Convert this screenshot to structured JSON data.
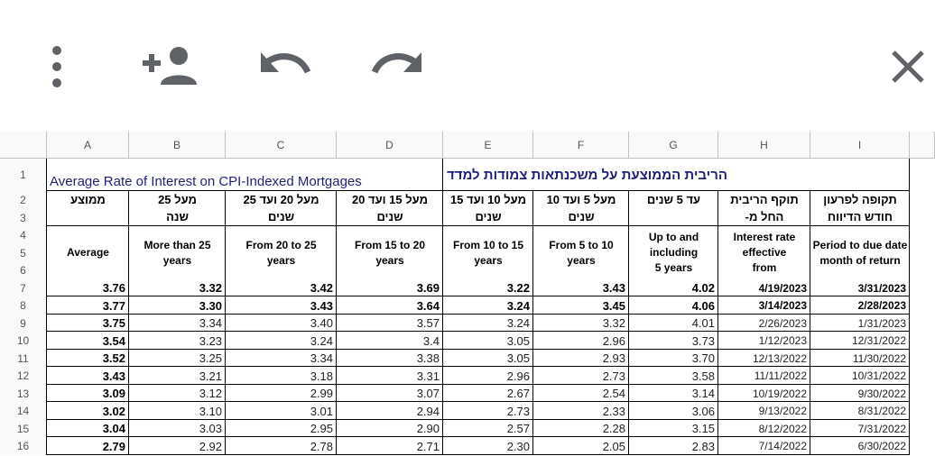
{
  "toolbar": {
    "icons": [
      "more-vert-icon",
      "add-person-icon",
      "undo-icon",
      "redo-icon",
      "close-icon"
    ]
  },
  "sheet": {
    "columns": [
      "A",
      "B",
      "C",
      "D",
      "E",
      "F",
      "G",
      "H",
      "I"
    ],
    "rows": [
      "1",
      "2",
      "3",
      "4",
      "5",
      "6",
      "7",
      "8",
      "9",
      "10",
      "11",
      "12",
      "13",
      "14",
      "15",
      "16"
    ],
    "title_en": "Average Rate of Interest on CPI-Indexed Mortgages",
    "title_he": "הריבית הממוצעת על משכנתאות צמודות למדד",
    "headers": [
      {
        "he1": "ממוצע",
        "he2": "",
        "en1": "Average",
        "en2": "",
        "en3": ""
      },
      {
        "he1": "מעל 25",
        "he2": "שנה",
        "en1": "More than 25",
        "en2": "years",
        "en3": ""
      },
      {
        "he1": "מעל 20 ועד 25",
        "he2": "שנים",
        "en1": "From 20 to 25",
        "en2": "years",
        "en3": ""
      },
      {
        "he1": "מעל 15 ועד 20",
        "he2": "שנים",
        "en1": "From 15 to 20",
        "en2": "years",
        "en3": ""
      },
      {
        "he1": "מעל 10 ועד 15",
        "he2": "שנים",
        "en1": "From 10 to 15",
        "en2": "years",
        "en3": ""
      },
      {
        "he1": "מעל 5 ועד 10",
        "he2": "שנים",
        "en1": "From 5 to 10",
        "en2": "years",
        "en3": ""
      },
      {
        "he1": "עד 5 שנים",
        "he2": "",
        "en1": "Up to and",
        "en2": "including",
        "en3": "5 years"
      },
      {
        "he1": "תוקף הריבית",
        "he2": "החל מ-",
        "en1": "Interest rate",
        "en2": "effective",
        "en3": "from"
      },
      {
        "he1": "תקופה לפרעון",
        "he2": "חודש הדיווח",
        "en1": "Period to due date",
        "en2": "",
        "en3": "month of return"
      }
    ],
    "data_rows": [
      [
        "3.76",
        "3.32",
        "3.42",
        "3.69",
        "3.22",
        "3.43",
        "4.02",
        "4/19/2023",
        "3/31/2023"
      ],
      [
        "3.77",
        "3.30",
        "3.43",
        "3.64",
        "3.24",
        "3.45",
        "4.06",
        "3/14/2023",
        "2/28/2023"
      ],
      [
        "3.75",
        "3.34",
        "3.40",
        "3.57",
        "3.24",
        "3.32",
        "4.01",
        "2/26/2023",
        "1/31/2023"
      ],
      [
        "3.54",
        "3.23",
        "3.24",
        "3.4",
        "3.05",
        "2.96",
        "3.73",
        "1/12/2023",
        "12/31/2022"
      ],
      [
        "3.52",
        "3.25",
        "3.34",
        "3.38",
        "3.05",
        "2.93",
        "3.70",
        "12/13/2022",
        "11/30/2022"
      ],
      [
        "3.43",
        "3.21",
        "3.18",
        "3.31",
        "2.96",
        "2.73",
        "3.58",
        "11/11/2022",
        "10/31/2022"
      ],
      [
        "3.09",
        "3.12",
        "2.99",
        "3.07",
        "2.67",
        "2.54",
        "3.14",
        "10/19/2022",
        "9/30/2022"
      ],
      [
        "3.02",
        "3.10",
        "3.01",
        "2.94",
        "2.73",
        "2.33",
        "3.06",
        "9/13/2022",
        "8/31/2022"
      ],
      [
        "3.04",
        "3.03",
        "2.95",
        "2.90",
        "2.57",
        "2.28",
        "3.15",
        "8/12/2022",
        "7/31/2022"
      ],
      [
        "2.79",
        "2.92",
        "2.78",
        "2.71",
        "2.30",
        "2.05",
        "2.83",
        "7/14/2022",
        "6/30/2022"
      ]
    ]
  }
}
